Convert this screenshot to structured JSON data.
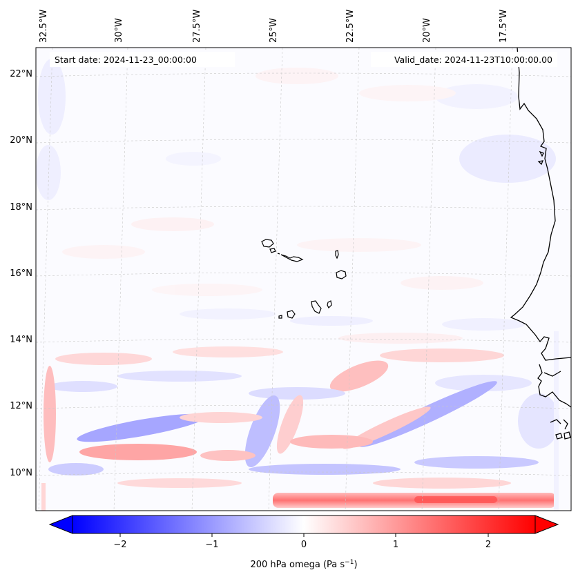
{
  "map": {
    "start_label": "Start date: 2024-11-23_00:00:00",
    "valid_label": "Valid_date: 2024-11-23T10:00:00.00",
    "lon_labels": [
      "32.5°W",
      "30°W",
      "27.5°W",
      "25°W",
      "22.5°W",
      "20°W",
      "17.5°W"
    ],
    "lat_labels": [
      "22°N",
      "20°N",
      "18°N",
      "16°N",
      "14°N",
      "12°N",
      "10°N"
    ],
    "variable": "200 hPa omega",
    "extent": {
      "lon": [
        -32.7,
        -15.3
      ],
      "lat": [
        8.9,
        22.75
      ]
    },
    "island_group": "Cape Verde"
  },
  "colorbar": {
    "label": "200 hPa omega (Pa s",
    "unit_exponent": "−1",
    "label_tail": ")",
    "ticks": [
      "−2",
      "−1",
      "0",
      "1",
      "2"
    ],
    "range": [
      -2.7,
      2.7
    ],
    "colormap": "bwr",
    "extend": "both"
  },
  "colors": {
    "negative": "#0000ff",
    "neutral": "#ffffff",
    "positive": "#ff0000",
    "coast": "#000000"
  }
}
